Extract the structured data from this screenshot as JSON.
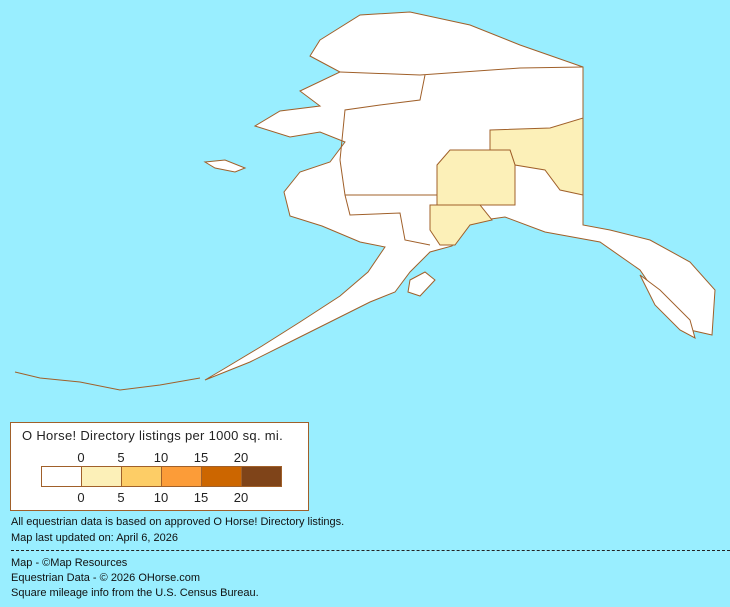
{
  "legend": {
    "title": "O Horse! Directory listings per 1000 sq. mi.",
    "top_ticks": [
      "0",
      "5",
      "10",
      "15",
      "20"
    ],
    "bottom_ticks": [
      "0",
      "5",
      "10",
      "15",
      "20"
    ],
    "colors": [
      "#FFFFFF",
      "#FCF0B8",
      "#FDCD66",
      "#FC9C38",
      "#CC6600",
      "#7F4419"
    ]
  },
  "map": {
    "background": "#99EEFF",
    "border_color": "#A0602A",
    "region_colors": {
      "none": "#FFFFFF",
      "low": "#FCF0B8"
    }
  },
  "notes": {
    "data_basis": "All equestrian data is based on approved O Horse! Directory listings.",
    "updated": "Map last updated on: April 6, 2026"
  },
  "credits": {
    "map": "Map - ©Map Resources",
    "data": "Equestrian Data - © 2026 OHorse.com",
    "census": "Square mileage info from the U.S. Census Bureau."
  }
}
